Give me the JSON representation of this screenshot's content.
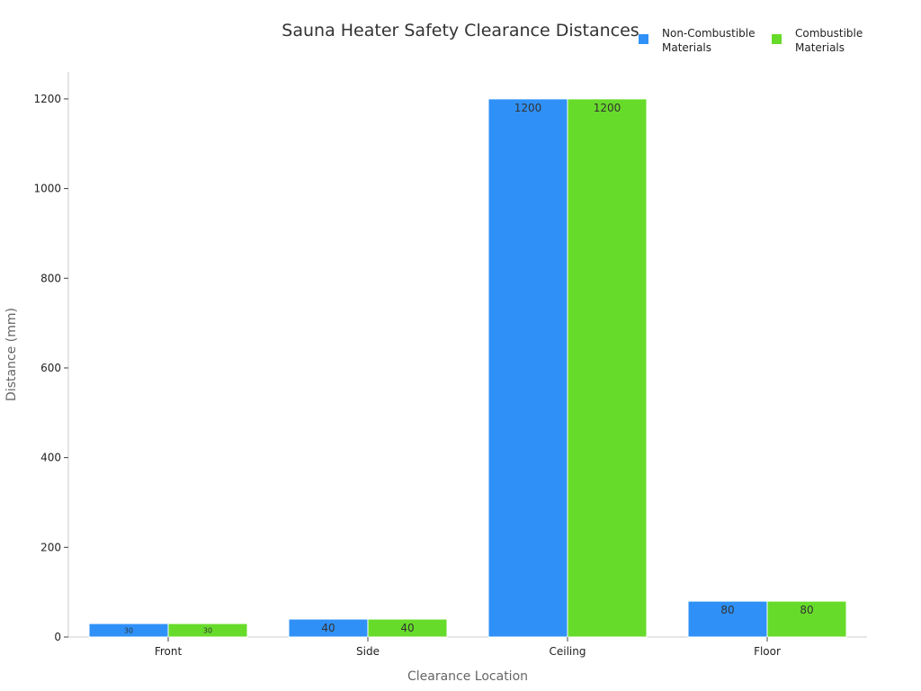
{
  "chart_data": {
    "type": "bar",
    "title": "Sauna Heater Safety Clearance Distances",
    "xlabel": "Clearance Location",
    "ylabel": "Distance (mm)",
    "categories": [
      "Front",
      "Side",
      "Ceiling",
      "Floor"
    ],
    "series": [
      {
        "name": "Non-Combustible Materials",
        "name_lines": [
          "Non-Combustible",
          "Materials"
        ],
        "color": "#2f91f7",
        "values": [
          30,
          40,
          1200,
          80
        ]
      },
      {
        "name": "Combustible Materials",
        "name_lines": [
          "Combustible",
          "Materials"
        ],
        "color": "#67db2a",
        "values": [
          30,
          40,
          1200,
          80
        ]
      }
    ],
    "ylim": [
      0,
      1260
    ],
    "yticks": [
      0,
      200,
      400,
      600,
      800,
      1000,
      1200
    ],
    "grid": false,
    "legend_position": "top-right",
    "data_labels": true
  }
}
